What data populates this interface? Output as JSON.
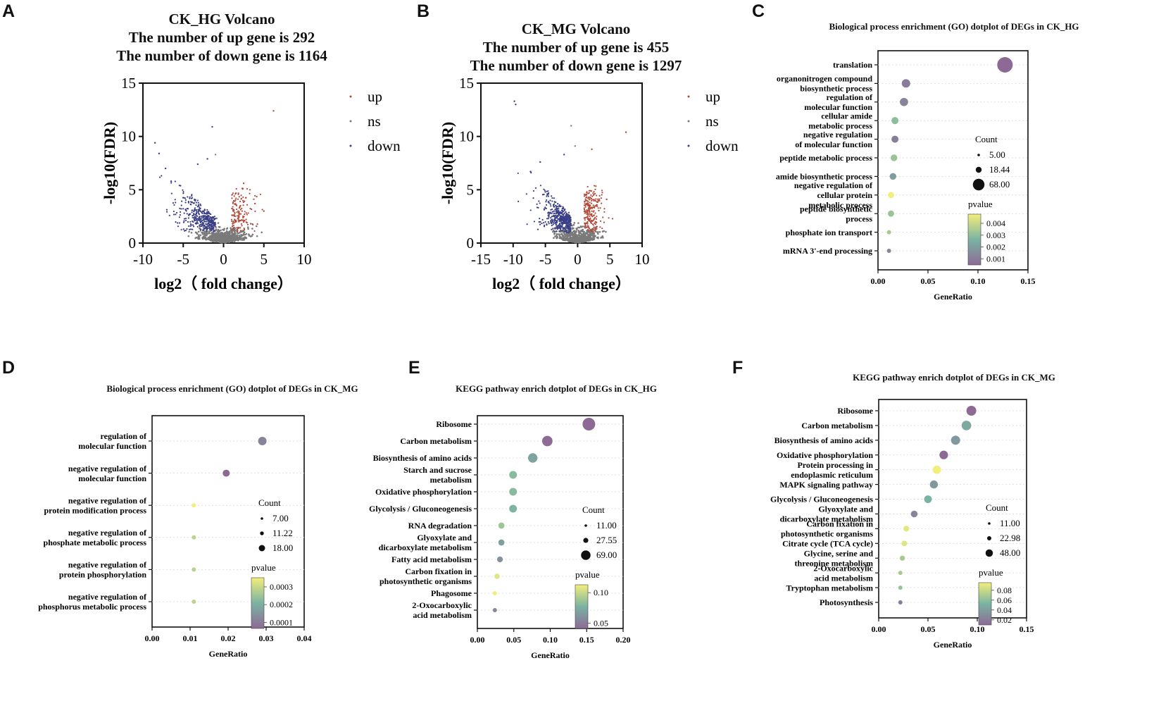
{
  "panel_letters": {
    "a": "A",
    "b": "B",
    "c": "C",
    "d": "D",
    "e": "E",
    "f": "F"
  },
  "colors": {
    "up": "#b24a3a",
    "ns": "#7a7a7a",
    "down": "#3a3f86",
    "viridis_low": "#8d6a96",
    "viridis_mid": "#7ab3a2",
    "viridis_high": "#f2ee7a",
    "grid": "#d9d9d9"
  },
  "chart_data": [
    {
      "id": "A",
      "type": "scatter",
      "title": "CK_HG Volcano",
      "subtitle1": "The number of up gene is 292",
      "subtitle2": "The number of down gene is 1164",
      "xlabel": "log2（ fold change）",
      "ylabel": "-log10(FDR)",
      "xlim": [
        -10,
        10
      ],
      "ylim": [
        0,
        15
      ],
      "xticks": [
        "-10",
        "-5",
        "0",
        "5",
        "10"
      ],
      "yticks": [
        "0",
        "5",
        "10",
        "15"
      ],
      "legend": [
        "up",
        "ns",
        "down"
      ],
      "up_count": 292,
      "down_count": 1164,
      "outliers": [
        [
          -8.5,
          9.4
        ],
        [
          -8.0,
          8.4
        ],
        [
          -7.2,
          7.0
        ],
        [
          -1.4,
          10.9
        ],
        [
          -3.2,
          7.4
        ],
        [
          -1.0,
          8.3
        ],
        [
          6.2,
          12.4
        ],
        [
          2.5,
          5.6
        ],
        [
          5.0,
          3.0
        ],
        [
          3.9,
          3.7
        ],
        [
          -6.5,
          5.8
        ],
        [
          -2.0,
          7.9
        ]
      ]
    },
    {
      "id": "B",
      "type": "scatter",
      "title": "CK_MG Volcano",
      "subtitle1": "The number of up gene is 455",
      "subtitle2": "The number of down gene is 1297",
      "xlabel": "log2（ fold change）",
      "ylabel": "-log10(FDR)",
      "xlim": [
        -15,
        10
      ],
      "ylim": [
        0,
        15
      ],
      "xticks": [
        "-15",
        "-10",
        "-5",
        "0",
        "5",
        "10"
      ],
      "yticks": [
        "0",
        "5",
        "10",
        "15"
      ],
      "legend": [
        "up",
        "ns",
        "down"
      ],
      "up_count": 455,
      "down_count": 1297,
      "outliers": [
        [
          -9.8,
          13.3
        ],
        [
          -9.6,
          13.0
        ],
        [
          -1.0,
          11.0
        ],
        [
          7.5,
          10.4
        ],
        [
          -2.1,
          8.3
        ],
        [
          -0.4,
          9.1
        ],
        [
          -5.8,
          7.6
        ],
        [
          4.5,
          4.1
        ],
        [
          -7.3,
          6.7
        ],
        [
          2.2,
          8.8
        ]
      ]
    },
    {
      "id": "C",
      "type": "dotplot",
      "title": "Biological process enrichment (GO) dotplot of DEGs in CK_HG",
      "xlabel": "GeneRatio",
      "xlim": [
        0,
        0.15
      ],
      "xticks": [
        "0.00",
        "0.05",
        "0.10",
        "0.15"
      ],
      "size_legend_title": "Count",
      "size_legend": [
        "5.00",
        "18.44",
        "68.00"
      ],
      "color_legend_title": "pvalue",
      "color_legend": [
        "0.004",
        "0.003",
        "0.002",
        "0.001"
      ],
      "categories": [
        [
          "translation"
        ],
        [
          "organonitrogen compound",
          "biosynthetic process"
        ],
        [
          "regulation of",
          "molecular function"
        ],
        [
          "cellular amide",
          "metabolic process"
        ],
        [
          "negative regulation",
          "of molecular function"
        ],
        [
          "peptide metabolic process"
        ],
        [
          "amide biosynthetic process"
        ],
        [
          "negative regulation of",
          "cellular protein",
          "metabolic process"
        ],
        [
          "peptide biosynthetic",
          "process"
        ],
        [
          "phosphate ion transport"
        ],
        [
          "mRNA 3'-end processing"
        ]
      ],
      "gene_ratio": [
        0.127,
        0.028,
        0.026,
        0.017,
        0.017,
        0.016,
        0.015,
        0.013,
        0.013,
        0.011,
        0.011
      ],
      "count": [
        68,
        14,
        13,
        9,
        9,
        8,
        8,
        7,
        7,
        5,
        5
      ],
      "pvalue": [
        0.0004,
        0.0009,
        0.0011,
        0.0028,
        0.001,
        0.003,
        0.0018,
        0.0045,
        0.003,
        0.0032,
        0.0012
      ]
    },
    {
      "id": "D",
      "type": "dotplot",
      "title": "Biological process enrichment (GO) dotplot of DEGs in CK_MG",
      "xlabel": "GeneRatio",
      "xlim": [
        0,
        0.04
      ],
      "xticks": [
        "0.00",
        "0.01",
        "0.02",
        "0.03",
        "0.04"
      ],
      "size_legend_title": "Count",
      "size_legend": [
        "7.00",
        "11.22",
        "18.00"
      ],
      "color_legend_title": "pvalue",
      "color_legend": [
        "0.0003",
        "0.0002",
        "0.0001"
      ],
      "categories": [
        [
          "regulation of",
          "molecular function"
        ],
        [
          "negative regulation of",
          "molecular function"
        ],
        [
          "negative regulation of",
          "protein modification process"
        ],
        [
          "negative regulation of",
          "phosphate metabolic process"
        ],
        [
          "negative regulation of",
          "protein phosphorylation"
        ],
        [
          "negative regulation of",
          "phosphorus metabolic process"
        ]
      ],
      "gene_ratio": [
        0.029,
        0.0195,
        0.011,
        0.011,
        0.011,
        0.011
      ],
      "count": [
        18,
        12,
        7,
        7,
        7,
        7
      ],
      "pvalue": [
        8e-05,
        2e-05,
        0.00036,
        0.00028,
        0.00028,
        0.00028
      ]
    },
    {
      "id": "E",
      "type": "dotplot",
      "title": "KEGG pathway enrich dotplot of DEGs in CK_HG",
      "xlabel": "GeneRatio",
      "xlim": [
        0,
        0.2
      ],
      "xticks": [
        "0.00",
        "0.05",
        "0.10",
        "0.15",
        "0.20"
      ],
      "size_legend_title": "Count",
      "size_legend": [
        "11.00",
        "27.55",
        "69.00"
      ],
      "color_legend_title": "pvalue",
      "color_legend": [
        "0.10",
        "0.05"
      ],
      "categories": [
        [
          "Ribosome"
        ],
        [
          "Carbon metabolism"
        ],
        [
          "Biosynthesis of amino acids"
        ],
        [
          "Starch and sucrose",
          "metabolism"
        ],
        [
          "Oxidative phosphorylation"
        ],
        [
          "Glycolysis / Gluconeogenesis"
        ],
        [
          "RNA degradation"
        ],
        [
          "Glyoxylate and",
          "dicarboxylate metabolism"
        ],
        [
          "Fatty acid metabolism"
        ],
        [
          "Carbon fixation in",
          "photosynthetic organisms"
        ],
        [
          "Phagosome"
        ],
        [
          "2-Oxocarboxylic",
          "acid metabolism"
        ]
      ],
      "gene_ratio": [
        0.153,
        0.096,
        0.076,
        0.049,
        0.049,
        0.049,
        0.033,
        0.033,
        0.031,
        0.027,
        0.024,
        0.024
      ],
      "count": [
        69,
        42,
        33,
        21,
        21,
        21,
        14,
        14,
        13,
        12,
        11,
        11
      ],
      "pvalue": [
        0.005,
        0.006,
        0.055,
        0.075,
        0.075,
        0.07,
        0.085,
        0.05,
        0.04,
        0.12,
        0.13,
        0.03
      ]
    },
    {
      "id": "F",
      "type": "dotplot",
      "title": "KEGG pathway enrich dotplot of DEGs in CK_MG",
      "xlabel": "GeneRatio",
      "xlim": [
        0,
        0.15
      ],
      "xticks": [
        "0.00",
        "0.05",
        "0.10",
        "0.15"
      ],
      "size_legend_title": "Count",
      "size_legend": [
        "11.00",
        "22.98",
        "48.00"
      ],
      "color_legend_title": "pvalue",
      "color_legend": [
        "0.08",
        "0.06",
        "0.04",
        "0.02"
      ],
      "categories": [
        [
          "Ribosome"
        ],
        [
          "Carbon metabolism"
        ],
        [
          "Biosynthesis of amino acids"
        ],
        [
          "Oxidative phosphorylation"
        ],
        [
          "Protein processing in",
          "endoplasmic reticulum"
        ],
        [
          "MAPK signaling pathway"
        ],
        [
          "Glycolysis / Gluconeogenesis"
        ],
        [
          "Glyoxylate and",
          "dicarboxylate metabolism"
        ],
        [
          "Carbon fixation in",
          "photosynthetic organisms"
        ],
        [
          "Citrate cycle (TCA cycle)"
        ],
        [
          "Glycine, serine and",
          "threonine metabolism"
        ],
        [
          "2-Oxocarboxylic",
          "acid metabolism"
        ],
        [
          "Tryptophan metabolism"
        ],
        [
          "Photosynthesis"
        ]
      ],
      "gene_ratio": [
        0.094,
        0.089,
        0.078,
        0.066,
        0.059,
        0.056,
        0.05,
        0.036,
        0.028,
        0.026,
        0.024,
        0.022,
        0.022,
        0.022
      ],
      "count": [
        48,
        45,
        39,
        33,
        30,
        28,
        25,
        18,
        14,
        13,
        12,
        11,
        11,
        11
      ],
      "pvalue": [
        0.005,
        0.04,
        0.03,
        0.005,
        0.085,
        0.03,
        0.045,
        0.02,
        0.08,
        0.078,
        0.06,
        0.06,
        0.055,
        0.015
      ]
    }
  ]
}
